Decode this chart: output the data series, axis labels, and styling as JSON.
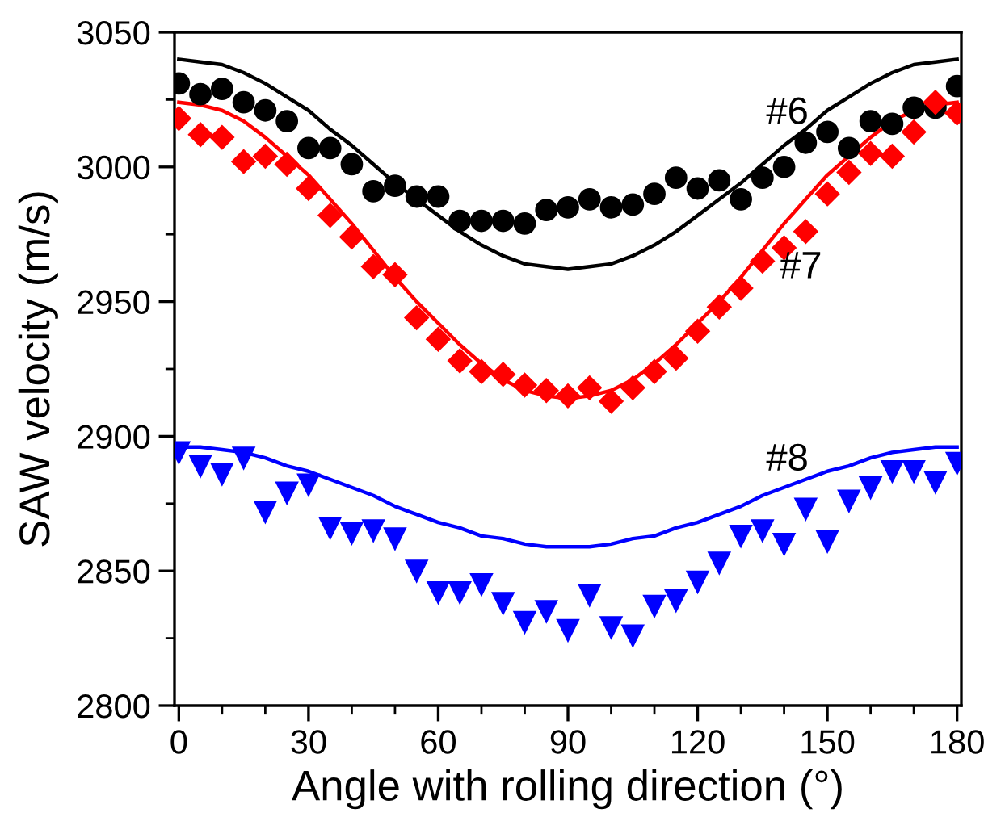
{
  "chart_data": {
    "type": "scatter",
    "xlabel": "Angle with rolling direction (°)",
    "ylabel": "SAW velocity (m/s)",
    "xlim": [
      -1,
      181
    ],
    "ylim": [
      2800,
      3050
    ],
    "xticks": [
      0,
      {
        "value": 10,
        "label": null
      },
      {
        "value": 20,
        "label": null
      },
      30,
      {
        "value": 40,
        "label": null
      },
      {
        "value": 50,
        "label": null
      },
      60,
      {
        "value": 70,
        "label": null
      },
      {
        "value": 80,
        "label": null
      },
      90,
      {
        "value": 100,
        "label": null
      },
      {
        "value": 110,
        "label": null
      },
      120,
      {
        "value": 130,
        "label": null
      },
      {
        "value": 140,
        "label": null
      },
      150,
      {
        "value": 160,
        "label": null
      },
      {
        "value": 170,
        "label": null
      },
      180
    ],
    "yticks": [
      2800,
      {
        "value": 2825,
        "label": null
      },
      2850,
      {
        "value": 2875,
        "label": null
      },
      2900,
      {
        "value": 2925,
        "label": null
      },
      2950,
      {
        "value": 2975,
        "label": null
      },
      3000,
      {
        "value": 3025,
        "label": null
      },
      3050
    ],
    "grid": false,
    "x": [
      0,
      5,
      10,
      15,
      20,
      25,
      30,
      35,
      40,
      45,
      50,
      55,
      60,
      65,
      70,
      75,
      80,
      85,
      90,
      95,
      100,
      105,
      110,
      115,
      120,
      125,
      130,
      135,
      140,
      145,
      150,
      155,
      160,
      165,
      170,
      175,
      180
    ],
    "series": [
      {
        "marker": "circle",
        "color": "#000000",
        "values": [
          3031,
          3027,
          3029,
          3024,
          3021,
          3017,
          3007,
          3007,
          3001,
          2991,
          2993,
          2989,
          2989,
          2980,
          2980,
          2980,
          2979,
          2984,
          2985,
          2988,
          2985,
          2986,
          2990,
          2996,
          2992,
          2995,
          2988,
          2996,
          3000,
          3009,
          3013,
          3007,
          3017,
          3016,
          3022,
          3022,
          3030
        ]
      },
      {
        "marker": "diamond",
        "color": "#ff0000",
        "values": [
          3018,
          3012,
          3011,
          3002,
          3004,
          3001,
          2992,
          2982,
          2974,
          2963,
          2960,
          2944,
          2936,
          2928,
          2924,
          2923,
          2919,
          2917,
          2915,
          2918,
          2913,
          2918,
          2924,
          2929,
          2939,
          2948,
          2955,
          2965,
          2970,
          2976,
          2990,
          2998,
          3005,
          3004,
          3013,
          3024,
          3020
        ]
      },
      {
        "marker": "triangle",
        "color": "#0000ff",
        "values": [
          2894,
          2889,
          2886,
          2892,
          2872,
          2879,
          2882,
          2866,
          2864,
          2865,
          2862,
          2850,
          2842,
          2842,
          2845,
          2838,
          2831,
          2835,
          2828,
          2841,
          2829,
          2826,
          2837,
          2839,
          2846,
          2853,
          2863,
          2865,
          2860,
          2873,
          2861,
          2876,
          2881,
          2887,
          2887,
          2883,
          2890
        ]
      },
      {
        "type": "line",
        "name": "#6",
        "color": "#000000",
        "values": [
          3040,
          3039,
          3038,
          3035,
          3031,
          3026,
          3021,
          3014,
          3008,
          3001,
          2994,
          2988,
          2982,
          2976,
          2971,
          2967,
          2964,
          2963,
          2962,
          2963,
          2964,
          2967,
          2971,
          2976,
          2982,
          2988,
          2994,
          3001,
          3008,
          3014,
          3021,
          3026,
          3031,
          3035,
          3038,
          3039,
          3040
        ]
      },
      {
        "type": "line",
        "name": "#7",
        "color": "#ff0000",
        "values": [
          3024,
          3023,
          3021,
          3017,
          3011,
          3004,
          2997,
          2988,
          2979,
          2969,
          2959,
          2950,
          2942,
          2934,
          2927,
          2921,
          2917,
          2915,
          2914,
          2915,
          2917,
          2921,
          2927,
          2934,
          2942,
          2950,
          2959,
          2969,
          2979,
          2988,
          2997,
          3004,
          3011,
          3017,
          3021,
          3023,
          3024
        ]
      },
      {
        "type": "line",
        "name": "#8",
        "color": "#0000ff",
        "values": [
          2896,
          2896,
          2895,
          2894,
          2892,
          2889,
          2887,
          2884,
          2881,
          2878,
          2874,
          2871,
          2868,
          2866,
          2863,
          2862,
          2860,
          2859,
          2859,
          2859,
          2860,
          2862,
          2863,
          2866,
          2868,
          2871,
          2874,
          2878,
          2881,
          2884,
          2887,
          2889,
          2892,
          2894,
          2895,
          2896,
          2896
        ]
      }
    ]
  }
}
